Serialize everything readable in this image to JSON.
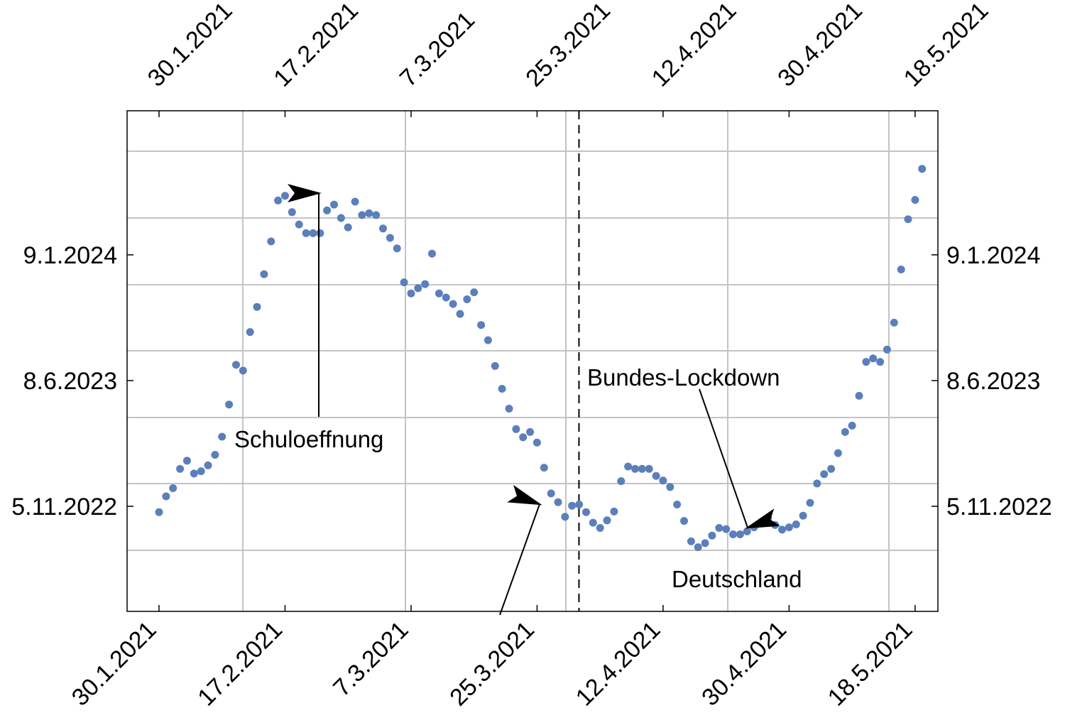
{
  "chart_data": {
    "type": "scatter",
    "x_axis": {
      "type": "date",
      "ticks": [
        "30.1.2021",
        "17.2.2021",
        "7.3.2021",
        "25.3.2021",
        "12.4.2021",
        "30.4.2021",
        "18.5.2021"
      ]
    },
    "y_axis": {
      "ticks": [
        "5.11.2022",
        "8.6.2023",
        "9.1.2024"
      ]
    },
    "grid": true,
    "marker_color": "#5b7fbb",
    "annotations": [
      {
        "text": "Schuloeffnung",
        "date": "2021-02-22"
      },
      {
        "text": "Bundes-Lockdown",
        "date": "2021-04-24"
      },
      {
        "text": "Deutschland"
      }
    ],
    "reference_line": {
      "date": "2021-04-01",
      "style": "dashed"
    },
    "points": [
      [
        "2021-01-30",
        "2022-10-26"
      ],
      [
        "2021-01-31",
        "2022-11-22"
      ],
      [
        "2021-02-01",
        "2022-12-06"
      ],
      [
        "2021-02-02",
        "2023-01-08"
      ],
      [
        "2021-02-03",
        "2023-01-22"
      ],
      [
        "2021-02-04",
        "2022-12-31"
      ],
      [
        "2021-02-05",
        "2023-01-04"
      ],
      [
        "2021-02-06",
        "2023-01-14"
      ],
      [
        "2021-02-07",
        "2023-02-01"
      ],
      [
        "2021-02-08",
        "2023-03-04"
      ],
      [
        "2021-02-09",
        "2023-04-28"
      ],
      [
        "2021-02-10",
        "2023-07-05"
      ],
      [
        "2021-02-11",
        "2023-06-25"
      ],
      [
        "2021-02-12",
        "2023-08-30"
      ],
      [
        "2021-02-13",
        "2023-10-12"
      ],
      [
        "2021-02-14",
        "2023-12-07"
      ],
      [
        "2021-02-15",
        "2024-02-01"
      ],
      [
        "2021-02-16",
        "2024-04-11"
      ],
      [
        "2021-02-17",
        "2024-04-19"
      ],
      [
        "2021-02-18",
        "2024-03-22"
      ],
      [
        "2021-02-19",
        "2024-03-01"
      ],
      [
        "2021-02-20",
        "2024-02-15"
      ],
      [
        "2021-02-21",
        "2024-02-15"
      ],
      [
        "2021-02-22",
        "2024-02-15"
      ],
      [
        "2021-02-23",
        "2024-03-25"
      ],
      [
        "2021-02-24",
        "2024-04-04"
      ],
      [
        "2021-02-25",
        "2024-03-12"
      ],
      [
        "2021-02-26",
        "2024-02-25"
      ],
      [
        "2021-02-27",
        "2024-04-09"
      ],
      [
        "2021-02-28",
        "2024-03-17"
      ],
      [
        "2021-03-01",
        "2024-03-20"
      ],
      [
        "2021-03-02",
        "2024-03-17"
      ],
      [
        "2021-03-03",
        "2024-02-23"
      ],
      [
        "2021-03-04",
        "2024-02-07"
      ],
      [
        "2021-03-05",
        "2024-01-20"
      ],
      [
        "2021-03-06",
        "2023-11-23"
      ],
      [
        "2021-03-07",
        "2023-11-04"
      ],
      [
        "2021-03-08",
        "2023-11-13"
      ],
      [
        "2021-03-09",
        "2023-11-20"
      ],
      [
        "2021-03-10",
        "2024-01-11"
      ],
      [
        "2021-03-11",
        "2023-11-04"
      ],
      [
        "2021-03-12",
        "2023-10-28"
      ],
      [
        "2021-03-13",
        "2023-10-17"
      ],
      [
        "2021-03-14",
        "2023-09-30"
      ],
      [
        "2021-03-15",
        "2023-10-25"
      ],
      [
        "2021-03-16",
        "2023-11-06"
      ],
      [
        "2021-03-17",
        "2023-09-11"
      ],
      [
        "2021-03-18",
        "2023-08-16"
      ],
      [
        "2021-03-19",
        "2023-07-03"
      ],
      [
        "2021-03-20",
        "2023-05-25"
      ],
      [
        "2021-03-21",
        "2023-04-21"
      ],
      [
        "2021-03-22",
        "2023-03-17"
      ],
      [
        "2021-03-23",
        "2023-03-03"
      ],
      [
        "2021-03-24",
        "2023-03-12"
      ],
      [
        "2021-03-25",
        "2023-02-22"
      ],
      [
        "2021-03-26",
        "2023-01-10"
      ],
      [
        "2021-03-27",
        "2022-11-27"
      ],
      [
        "2021-03-28",
        "2022-11-12"
      ],
      [
        "2021-03-29",
        "2022-10-18"
      ],
      [
        "2021-03-30",
        "2022-11-06"
      ],
      [
        "2021-03-31",
        "2022-11-08"
      ],
      [
        "2021-04-01",
        "2022-10-26"
      ],
      [
        "2021-04-02",
        "2022-10-08"
      ],
      [
        "2021-04-03",
        "2022-09-29"
      ],
      [
        "2021-04-04",
        "2022-10-12"
      ],
      [
        "2021-04-05",
        "2022-10-27"
      ],
      [
        "2021-04-06",
        "2022-12-18"
      ],
      [
        "2021-04-07",
        "2023-01-12"
      ],
      [
        "2021-04-08",
        "2023-01-08"
      ],
      [
        "2021-04-09",
        "2023-01-08"
      ],
      [
        "2021-04-10",
        "2023-01-08"
      ],
      [
        "2021-04-11",
        "2022-12-27"
      ],
      [
        "2021-04-12",
        "2022-12-19"
      ],
      [
        "2021-04-13",
        "2022-12-08"
      ],
      [
        "2021-04-14",
        "2022-11-08"
      ],
      [
        "2021-04-15",
        "2022-10-11"
      ],
      [
        "2021-04-16",
        "2022-09-06"
      ],
      [
        "2021-04-17",
        "2022-08-27"
      ],
      [
        "2021-04-18",
        "2022-09-03"
      ],
      [
        "2021-04-19",
        "2022-09-16"
      ],
      [
        "2021-04-20",
        "2022-09-29"
      ],
      [
        "2021-04-21",
        "2022-09-27"
      ],
      [
        "2021-04-22",
        "2022-09-18"
      ],
      [
        "2021-04-23",
        "2022-09-18"
      ],
      [
        "2021-04-24",
        "2022-09-23"
      ],
      [
        "2021-04-25",
        "2022-09-30"
      ],
      [
        "2021-04-26",
        "2022-10-07"
      ],
      [
        "2021-04-27",
        "2022-10-16"
      ],
      [
        "2021-04-28",
        "2022-10-04"
      ],
      [
        "2021-04-29",
        "2022-09-26"
      ],
      [
        "2021-04-30",
        "2022-09-30"
      ],
      [
        "2021-05-01",
        "2022-10-05"
      ],
      [
        "2021-05-02",
        "2022-10-20"
      ],
      [
        "2021-05-03",
        "2022-11-11"
      ],
      [
        "2021-05-04",
        "2022-12-14"
      ],
      [
        "2021-05-05",
        "2022-12-30"
      ],
      [
        "2021-05-06",
        "2023-01-08"
      ],
      [
        "2021-05-07",
        "2023-02-04"
      ],
      [
        "2021-05-08",
        "2023-03-12"
      ],
      [
        "2021-05-09",
        "2023-03-23"
      ],
      [
        "2021-05-10",
        "2023-05-13"
      ],
      [
        "2021-05-11",
        "2023-07-10"
      ],
      [
        "2021-05-12",
        "2023-07-16"
      ],
      [
        "2021-05-13",
        "2023-07-10"
      ],
      [
        "2021-05-14",
        "2023-07-31"
      ],
      [
        "2021-05-15",
        "2023-09-15"
      ],
      [
        "2021-05-16",
        "2023-12-15"
      ],
      [
        "2021-05-17",
        "2024-03-10"
      ],
      [
        "2021-05-18",
        "2024-04-12"
      ],
      [
        "2021-05-19",
        "2024-06-04"
      ]
    ]
  }
}
